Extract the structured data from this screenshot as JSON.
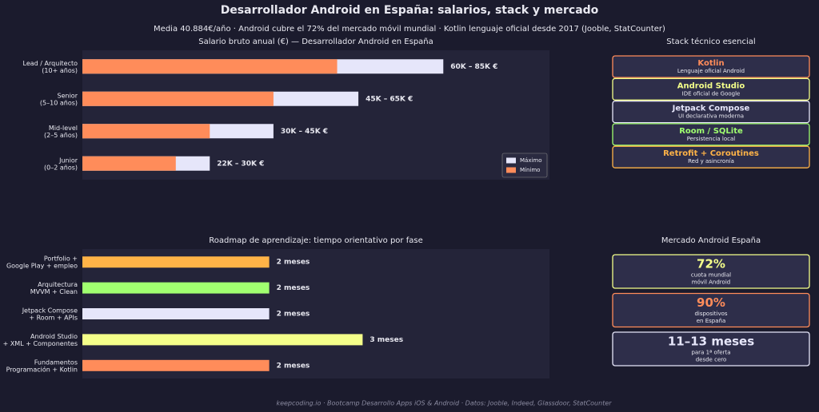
{
  "title": "Desarrollador Android en España: salarios, stack y mercado",
  "subtitle": "Media 40.884€/año · Android cubre el 72% del mercado móvil mundial · Kotlin lenguaje oficial desde 2017 (Jooble, StatCounter)",
  "chart_data": [
    {
      "type": "bar",
      "orientation": "horizontal",
      "title": "Salario bruto anual (€) — Desarrollador Android en España",
      "categories": [
        "Lead / Arquitecto\n(10+ años)",
        "Senior\n(5–10 años)",
        "Mid-level\n(2–5 años)",
        "Junior\n(0–2 años)"
      ],
      "series": [
        {
          "name": "Máximo",
          "color": "#e6e6fa",
          "values": [
            85,
            65,
            45,
            30
          ]
        },
        {
          "name": "Mínimo",
          "color": "#ff8c5a",
          "values": [
            60,
            45,
            30,
            22
          ]
        }
      ],
      "value_labels": [
        "60K – 85K €",
        "45K – 65K €",
        "30K – 45K €",
        "22K – 30K €"
      ],
      "xlim": [
        0,
        110
      ],
      "legend": "lower right"
    },
    {
      "type": "bar",
      "orientation": "horizontal",
      "title": "Roadmap de aprendizaje: tiempo orientativo por fase",
      "categories": [
        "Portfolio +\nGoogle Play + empleo",
        "Arquitectura\nMVVM + Clean",
        "Jetpack Compose\n+ Room + APIs",
        "Android Studio\n+ XML + Componentes",
        "Fundamentos\nProgramación + Kotlin"
      ],
      "values": [
        2,
        2,
        2,
        3,
        2
      ],
      "colors": [
        "#ffb347",
        "#a0ff70",
        "#e6e6fa",
        "#f4ff8a",
        "#ff8c5a"
      ],
      "value_labels": [
        "2 meses",
        "2 meses",
        "2 meses",
        "3 meses",
        "2 meses"
      ],
      "xlim": [
        0,
        5
      ]
    }
  ],
  "stack": {
    "title": "Stack técnico esencial",
    "items": [
      {
        "name": "Kotlin",
        "description": "Lenguaje oficial Android",
        "color": "#ff8c5a"
      },
      {
        "name": "Android Studio",
        "description": "IDE oficial de Google",
        "color": "#f4ff8a"
      },
      {
        "name": "Jetpack Compose",
        "description": "UI declarativa moderna",
        "color": "#e6e6fa"
      },
      {
        "name": "Room / SQLite",
        "description": "Persistencia local",
        "color": "#a0ff70"
      },
      {
        "name": "Retrofit + Coroutines",
        "description": "Red y asincronía",
        "color": "#ffb347"
      }
    ]
  },
  "market": {
    "title": "Mercado Android España",
    "cards": [
      {
        "value": "72%",
        "description": "cuota mundial\nmóvil Android",
        "color": "#f4ff8a"
      },
      {
        "value": "90%",
        "description": "dispositivos\nen España",
        "color": "#ff8c5a"
      },
      {
        "value": "11–13 meses",
        "description": "para 1ª oferta\ndesde cero",
        "color": "#e6e6fa"
      }
    ]
  },
  "footer": "keepcoding.io  ·  Bootcamp Desarrollo Apps iOS & Android  ·  Datos: Jooble, Indeed, Glassdoor, StatCounter"
}
